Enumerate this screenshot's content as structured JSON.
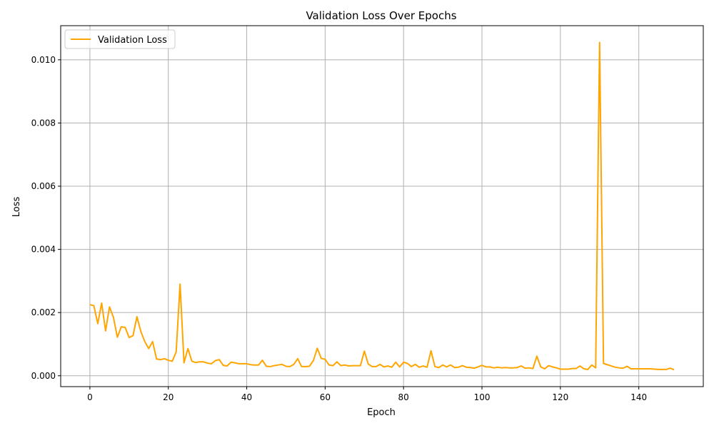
{
  "chart_data": {
    "type": "line",
    "title": "Validation Loss Over Epochs",
    "xlabel": "Epoch",
    "ylabel": "Loss",
    "xlim": [
      -7.45,
      156.45
    ],
    "ylim": [
      -0.000344,
      0.01108
    ],
    "xticks": [
      0,
      20,
      40,
      60,
      80,
      100,
      120,
      140
    ],
    "xtick_labels": [
      "0",
      "20",
      "40",
      "60",
      "80",
      "100",
      "120",
      "140"
    ],
    "yticks": [
      0.0,
      0.002,
      0.004,
      0.006,
      0.008,
      0.01
    ],
    "ytick_labels": [
      "0.000",
      "0.002",
      "0.004",
      "0.006",
      "0.008",
      "0.010"
    ],
    "grid": true,
    "legend_position": "upper-left",
    "series": [
      {
        "name": "Validation Loss",
        "color": "#ffa500",
        "x": [
          0,
          1,
          2,
          3,
          4,
          5,
          6,
          7,
          8,
          9,
          10,
          11,
          12,
          13,
          14,
          15,
          16,
          17,
          18,
          19,
          20,
          21,
          22,
          23,
          24,
          25,
          26,
          27,
          28,
          29,
          30,
          31,
          32,
          33,
          34,
          35,
          36,
          37,
          38,
          39,
          40,
          41,
          42,
          43,
          44,
          45,
          46,
          47,
          48,
          49,
          50,
          51,
          52,
          53,
          54,
          55,
          56,
          57,
          58,
          59,
          60,
          61,
          62,
          63,
          64,
          65,
          66,
          67,
          68,
          69,
          70,
          71,
          72,
          73,
          74,
          75,
          76,
          77,
          78,
          79,
          80,
          81,
          82,
          83,
          84,
          85,
          86,
          87,
          88,
          89,
          90,
          91,
          92,
          93,
          94,
          95,
          96,
          97,
          98,
          99,
          100,
          101,
          102,
          103,
          104,
          105,
          106,
          107,
          108,
          109,
          110,
          111,
          112,
          113,
          114,
          115,
          116,
          117,
          118,
          119,
          120,
          121,
          122,
          123,
          124,
          125,
          126,
          127,
          128,
          129,
          130,
          131,
          132,
          133,
          134,
          135,
          136,
          137,
          138,
          139,
          140,
          141,
          142,
          143,
          144,
          145,
          146,
          147,
          148,
          149
        ],
        "values": [
          0.00225,
          0.00222,
          0.00165,
          0.0023,
          0.00142,
          0.00218,
          0.00185,
          0.00122,
          0.00155,
          0.00153,
          0.00121,
          0.00127,
          0.00187,
          0.0014,
          0.00108,
          0.00086,
          0.00108,
          0.00053,
          0.00051,
          0.00054,
          0.00049,
          0.00046,
          0.00075,
          0.0029,
          0.00041,
          0.00086,
          0.00046,
          0.00042,
          0.00044,
          0.00044,
          0.0004,
          0.00038,
          0.00048,
          0.00051,
          0.00033,
          0.00031,
          0.00043,
          0.00041,
          0.00038,
          0.00038,
          0.00038,
          0.00035,
          0.00034,
          0.00034,
          0.00049,
          0.0003,
          0.00029,
          0.00032,
          0.00034,
          0.00036,
          0.0003,
          0.00029,
          0.00036,
          0.00054,
          0.00029,
          0.00029,
          0.0003,
          0.00048,
          0.00087,
          0.00055,
          0.00052,
          0.00034,
          0.00032,
          0.00044,
          0.00032,
          0.00034,
          0.00031,
          0.00032,
          0.00032,
          0.00032,
          0.00078,
          0.00037,
          0.00029,
          0.00029,
          0.00036,
          0.00028,
          0.00031,
          0.00027,
          0.00043,
          0.00028,
          0.00043,
          0.00039,
          0.00029,
          0.00036,
          0.00027,
          0.00031,
          0.00027,
          0.00079,
          0.00029,
          0.00026,
          0.00034,
          0.00028,
          0.00034,
          0.00026,
          0.00027,
          0.00032,
          0.00027,
          0.00026,
          0.00024,
          0.00028,
          0.00033,
          0.00028,
          0.00028,
          0.00025,
          0.00027,
          0.00025,
          0.00026,
          0.00025,
          0.00025,
          0.00026,
          0.00031,
          0.00024,
          0.00025,
          0.00023,
          0.00062,
          0.00028,
          0.00022,
          0.00032,
          0.00028,
          0.00025,
          0.00021,
          0.00021,
          0.00021,
          0.00023,
          0.00023,
          0.00031,
          0.00022,
          0.0002,
          0.00034,
          0.00025,
          0.01055,
          0.00039,
          0.00035,
          0.00031,
          0.00027,
          0.00025,
          0.00024,
          0.0003,
          0.00022,
          0.00022,
          0.00022,
          0.00022,
          0.00022,
          0.00022,
          0.00021,
          0.0002,
          0.0002,
          0.0002,
          0.00024,
          0.00019
        ]
      }
    ]
  }
}
